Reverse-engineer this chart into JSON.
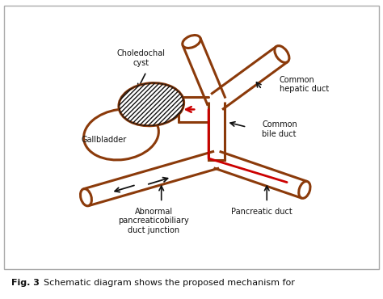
{
  "bg_color": "#ffffff",
  "duct_color": "#8B3A0A",
  "duct_lw": 2.2,
  "red_color": "#cc0000",
  "black_color": "#111111",
  "fig_caption": "Fig. 3  Schematic diagram shows the proposed mechanism for",
  "caption_bold": "Fig. 3",
  "caption_rest": "  Schematic diagram shows the proposed mechanism for",
  "labels": {
    "choledochal_cyst": "Choledochal\ncyst",
    "gallbladder": "Gallbladder",
    "common_hepatic": "Common\nhepatic duct",
    "common_bile": "Common\nbile duct",
    "abnormal": "Abnormal\npancreaticobiliary\nduct junction",
    "pancreatic": "Pancreatic duct"
  }
}
